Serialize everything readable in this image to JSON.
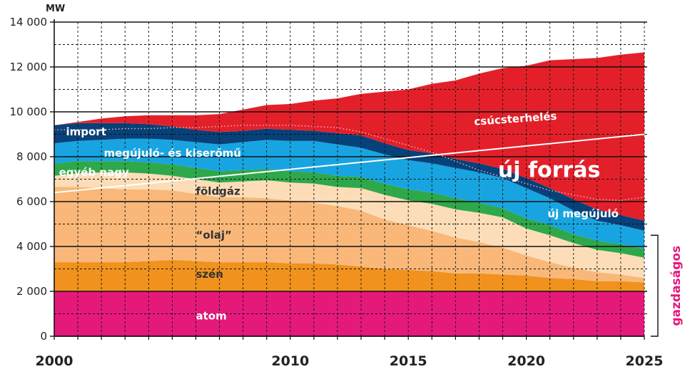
{
  "chart_data": {
    "type": "area",
    "unit_label": "MW",
    "x": [
      2000,
      2001,
      2002,
      2003,
      2004,
      2005,
      2006,
      2007,
      2008,
      2009,
      2010,
      2011,
      2012,
      2013,
      2014,
      2015,
      2016,
      2017,
      2018,
      2019,
      2020,
      2021,
      2022,
      2023,
      2024,
      2025
    ],
    "xticks": [
      2000,
      2010,
      2015,
      2020,
      2025
    ],
    "yticks": [
      0,
      2000,
      4000,
      6000,
      8000,
      10000,
      12000,
      14000
    ],
    "ytick_labels": [
      "0",
      "2 000",
      "4 000",
      "6 000",
      "8 000",
      "10 000",
      "12 000",
      "14 000"
    ],
    "xlim": [
      2000,
      2025
    ],
    "ylim": [
      0,
      14000
    ],
    "grid": true,
    "series": [
      {
        "name": "atom",
        "color": "#e5197a",
        "label_color": "#ffffff",
        "label_x": 2006,
        "label_y": 750,
        "values": [
          2000,
          2000,
          2000,
          2000,
          2000,
          2000,
          2000,
          2000,
          2000,
          2000,
          2000,
          2000,
          2000,
          2000,
          2000,
          2000,
          2000,
          2000,
          2000,
          2000,
          2000,
          2000,
          2000,
          2000,
          2000,
          2000
        ]
      },
      {
        "name": "szén",
        "color": "#f0921d",
        "label_color": "#333333",
        "label_x": 2006,
        "label_y": 2600,
        "values": [
          1300,
          1300,
          1300,
          1300,
          1350,
          1400,
          1350,
          1300,
          1300,
          1300,
          1250,
          1250,
          1200,
          1100,
          1000,
          950,
          900,
          800,
          800,
          750,
          700,
          600,
          550,
          450,
          450,
          400
        ]
      },
      {
        "name": "“olaj”",
        "color": "#f9b879",
        "label_color": "#333333",
        "label_x": 2006,
        "label_y": 4350,
        "values": [
          3350,
          3350,
          3300,
          3250,
          3200,
          3100,
          3000,
          2900,
          2900,
          2850,
          2800,
          2700,
          2600,
          2500,
          2200,
          2000,
          1800,
          1600,
          1400,
          1200,
          900,
          700,
          500,
          400,
          300,
          200
        ]
      },
      {
        "name": "földgáz",
        "color": "#fdddb7",
        "label_color": "#333333",
        "label_x": 2006,
        "label_y": 6300,
        "values": [
          500,
          600,
          700,
          750,
          700,
          650,
          650,
          650,
          700,
          800,
          800,
          850,
          850,
          1000,
          1100,
          1100,
          1200,
          1250,
          1300,
          1350,
          1200,
          1200,
          1100,
          1000,
          950,
          900
        ]
      },
      {
        "name": "egyéb nagy",
        "color": "#2ea84a",
        "label_color": "#ffffff",
        "label_x": 2000.2,
        "label_y": 7150,
        "values": [
          550,
          550,
          500,
          500,
          500,
          500,
          500,
          500,
          500,
          500,
          500,
          500,
          500,
          500,
          500,
          500,
          500,
          500,
          450,
          400,
          450,
          450,
          400,
          400,
          400,
          400
        ]
      },
      {
        "name": "megújuló- és kiserőmű",
        "color": "#18a4e0",
        "label_color": "#ffffff",
        "label_x": 2002.1,
        "label_y": 8000,
        "values": [
          900,
          900,
          950,
          1000,
          1050,
          1100,
          1150,
          1200,
          1250,
          1300,
          1350,
          1400,
          1400,
          1300,
          1300,
          1300,
          1300,
          1350,
          1350,
          1350,
          1350,
          1200,
          1050,
          900,
          850,
          800
        ]
      },
      {
        "name": "import",
        "color": "#07417a",
        "label_color": "#ffffff",
        "label_x": 2000.5,
        "label_y": 8950,
        "values": [
          800,
          800,
          750,
          700,
          650,
          600,
          550,
          550,
          500,
          500,
          500,
          450,
          500,
          550,
          500,
          450,
          450,
          400,
          400,
          400,
          450,
          450,
          500,
          500,
          450,
          450
        ]
      },
      {
        "name": "új forrás",
        "color": "#e3202a",
        "label_color": "#ffffff",
        "label_x": 2018.8,
        "label_y": 7100,
        "values": [
          0,
          50,
          200,
          300,
          400,
          500,
          650,
          800,
          950,
          1050,
          1150,
          1350,
          1550,
          1850,
          2300,
          2700,
          3100,
          3500,
          4000,
          4500,
          5000,
          5700,
          6250,
          6750,
          7150,
          7500
        ]
      }
    ],
    "peak_load": {
      "name": "csúcsterhelés",
      "color": "#ffffff",
      "label_color": "#ffffff",
      "label_x": 2017.8,
      "label_y": 9400,
      "x": [
        2000,
        2025
      ],
      "values": [
        6400,
        9000
      ]
    },
    "new_renewable": {
      "name": "új megújuló",
      "label_color": "#ffffff",
      "label_x": 2020.9,
      "label_y": 5300,
      "line_color": "#ffb4b4",
      "values": [
        9200,
        9200,
        9200,
        9250,
        9250,
        9300,
        9300,
        9350,
        9400,
        9400,
        9400,
        9350,
        9300,
        9100,
        8800,
        8500,
        8200,
        7800,
        7400,
        7100,
        6800,
        6500,
        6300,
        6100,
        6050,
        6200
      ]
    },
    "bracket_label": "gazdaságos",
    "bracket_color": "#e5197a",
    "bracket_range": [
      0,
      4500
    ]
  }
}
